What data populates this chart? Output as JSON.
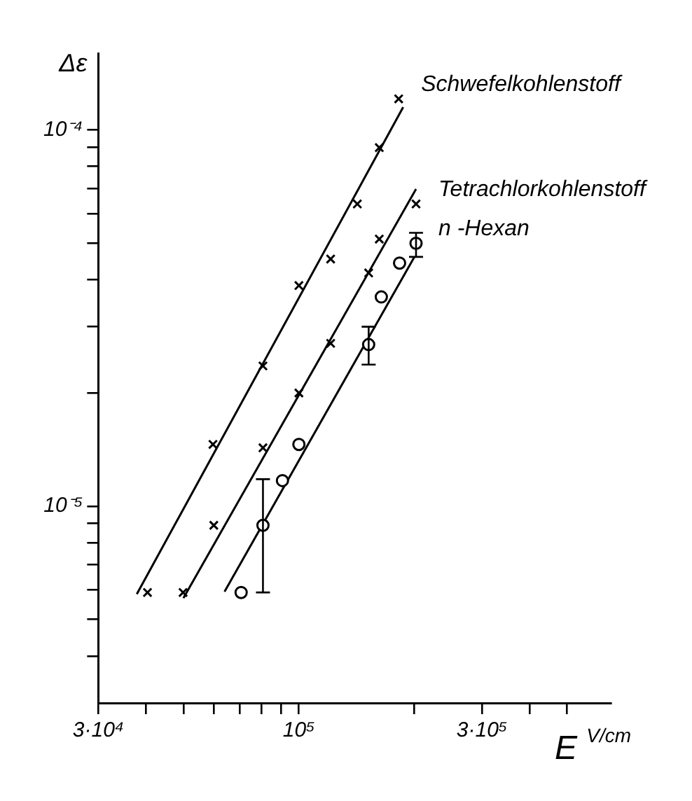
{
  "chart_data": {
    "type": "scatter",
    "xlabel": "E $^{V/cm}$",
    "ylabel": "Δε",
    "log": "xy",
    "grid": false,
    "legend": false,
    "xlim": [
      30000,
      650000
    ],
    "ylim": [
      3e-06,
      0.00016
    ],
    "xticks": [
      {
        "value": 30000,
        "label": "3·10⁴"
      },
      {
        "value": 40000,
        "label": null
      },
      {
        "value": 50000,
        "label": null
      },
      {
        "value": 60000,
        "label": null
      },
      {
        "value": 70000,
        "label": null
      },
      {
        "value": 80000,
        "label": null
      },
      {
        "value": 90000,
        "label": null
      },
      {
        "value": 100000,
        "label": "10⁵"
      },
      {
        "value": 200000,
        "label": null
      },
      {
        "value": 300000,
        "label": "3·10⁵"
      },
      {
        "value": 400000,
        "label": null
      },
      {
        "value": 500000,
        "label": null
      }
    ],
    "yticks": [
      {
        "value": 4e-06,
        "label": null
      },
      {
        "value": 5e-06,
        "label": null
      },
      {
        "value": 6e-06,
        "label": null
      },
      {
        "value": 7e-06,
        "label": null
      },
      {
        "value": 8e-06,
        "label": null
      },
      {
        "value": 9e-06,
        "label": null
      },
      {
        "value": 1e-05,
        "label": "10⁻⁵"
      },
      {
        "value": 2e-05,
        "label": null
      },
      {
        "value": 3e-05,
        "label": null
      },
      {
        "value": 4e-05,
        "label": null
      },
      {
        "value": 5e-05,
        "label": null
      },
      {
        "value": 6e-05,
        "label": null
      },
      {
        "value": 7e-05,
        "label": null
      },
      {
        "value": 8e-05,
        "label": null
      },
      {
        "value": 9e-05,
        "label": null
      },
      {
        "value": 0.0001,
        "label": "10⁻⁴"
      }
    ],
    "series": [
      {
        "name": "Schwefelkohlenstoff",
        "color": "#000000",
        "marker": "cross",
        "x": [
          40300,
          59700,
          80600,
          100000,
          121000,
          142000,
          162000,
          182000
        ],
        "values": [
          5.9e-06,
          1.46e-05,
          2.36e-05,
          3.86e-05,
          4.54e-05,
          6.36e-05,
          8.98e-05,
          0.000121
        ]
      },
      {
        "name": "Tetrachlorkohlenstoff",
        "color": "#000000",
        "marker": "cross",
        "x": [
          49900,
          60000,
          80600,
          100000,
          121000,
          152000,
          162000,
          202000
        ],
        "values": [
          5.9e-06,
          8.9e-06,
          1.43e-05,
          2e-05,
          2.71e-05,
          4.17e-05,
          5.13e-05,
          6.36e-05
        ]
      },
      {
        "name": "n -Hexan",
        "color": "#000000",
        "marker": "circle",
        "x": [
          70700,
          80600,
          90600,
          100000,
          152000,
          164000,
          183000,
          202000
        ],
        "values": [
          5.9e-06,
          8.9e-06,
          1.17e-05,
          1.46e-05,
          2.69e-05,
          3.6e-05,
          4.43e-05,
          5e-05
        ],
        "errors": [
          null,
          [
            5.9e-06,
            1.18e-05
          ],
          null,
          null,
          [
            2.38e-05,
            3e-05
          ],
          null,
          null,
          [
            4.6e-05,
            5.33e-05
          ]
        ]
      },
      {
        "type": "line",
        "color": "#000000",
        "marker": "none",
        "x": [
          37800,
          187000
        ],
        "values": [
          5.84e-06,
          0.000115
        ]
      },
      {
        "type": "line",
        "color": "#000000",
        "marker": "none",
        "x": [
          50000,
          202000
        ],
        "values": [
          5.7e-06,
          6.97e-05
        ]
      },
      {
        "type": "line",
        "color": "#000000",
        "marker": "none",
        "x": [
          64000,
          200000
        ],
        "values": [
          5.93e-06,
          4.6e-05
        ]
      }
    ]
  }
}
